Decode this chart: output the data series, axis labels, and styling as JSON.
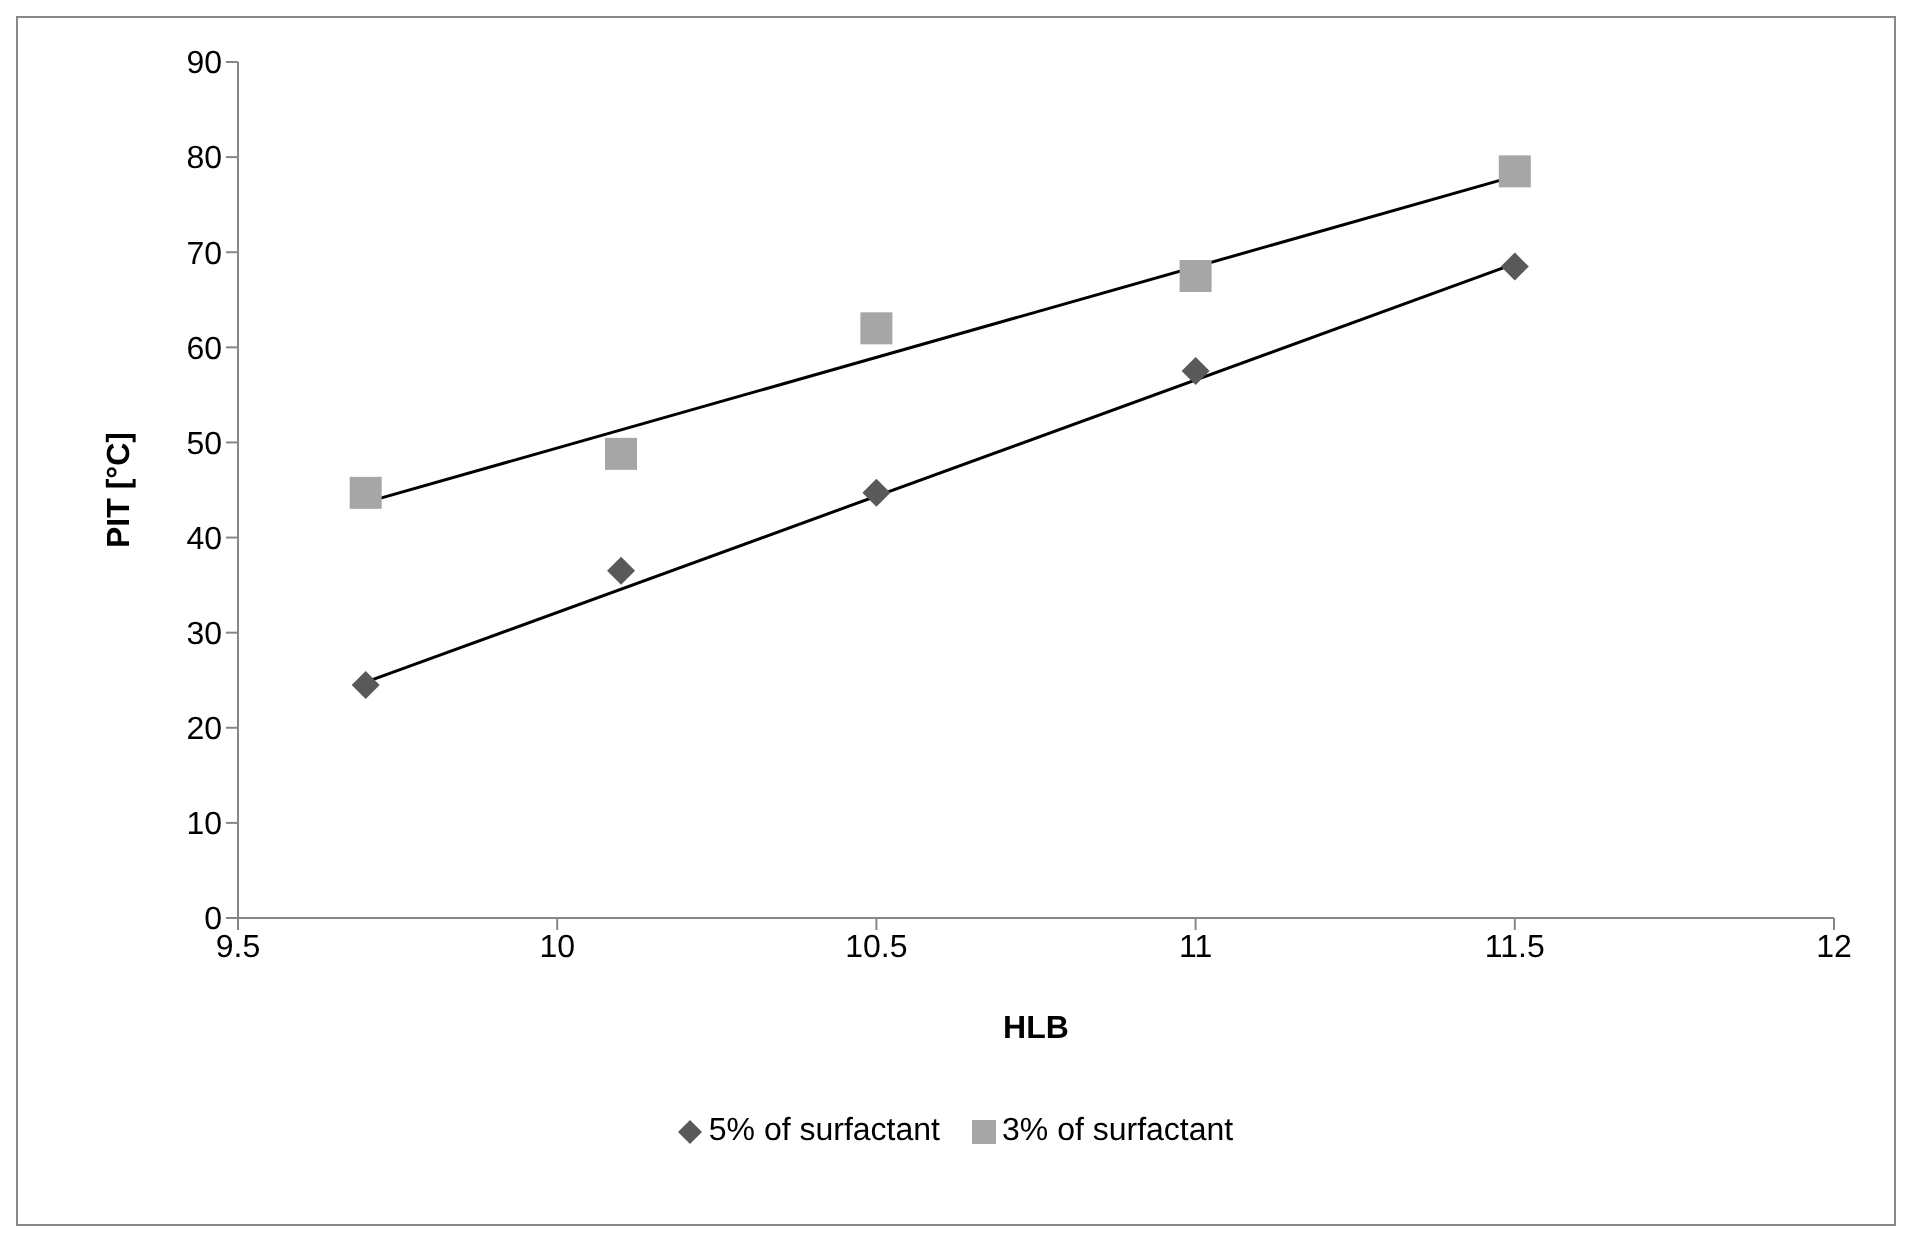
{
  "chart_data": {
    "type": "scatter",
    "xlabel": "HLB",
    "ylabel": "PIT [°C]",
    "xlim": [
      9.5,
      12
    ],
    "xticks": [
      9.5,
      10,
      10.5,
      11,
      11.5,
      12
    ],
    "ylim": [
      0,
      90
    ],
    "yticks": [
      0,
      10,
      20,
      30,
      40,
      50,
      60,
      70,
      80,
      90
    ],
    "grid": false,
    "legend": "bottom",
    "series": [
      {
        "name": "5% of surfactant",
        "color": "#595959",
        "marker": "diamond",
        "x": [
          9.7,
          10.1,
          10.5,
          11,
          11.5
        ],
        "values": [
          24.5,
          36.5,
          44.7,
          57.5,
          68.5
        ]
      },
      {
        "name": "3% of surfactant",
        "color": "#a6a6a6",
        "marker": "square",
        "x": [
          9.7,
          10.1,
          10.5,
          11,
          11.5
        ],
        "values": [
          44.7,
          48.8,
          62,
          67.5,
          78.5
        ]
      },
      {
        "type": "line",
        "color": "#000000",
        "marker": "none",
        "line_style": "solid",
        "x": [
          9.7,
          11.5
        ],
        "values": [
          24.8,
          68.8
        ]
      },
      {
        "type": "line",
        "color": "#000000",
        "marker": "none",
        "line_style": "solid",
        "x": [
          9.7,
          11.5
        ],
        "values": [
          43.7,
          78
        ]
      }
    ]
  }
}
